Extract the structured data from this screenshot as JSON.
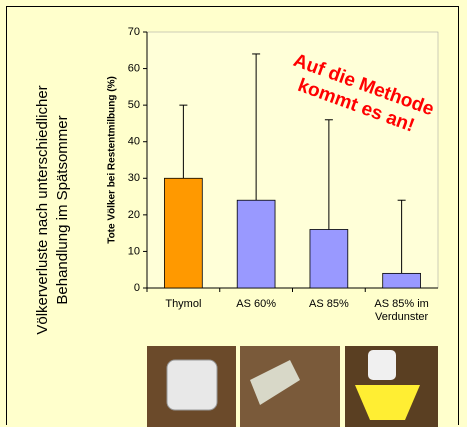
{
  "side_title": [
    "Völkerverluste nach unterschiedlicher",
    "Behandlung im Spätsommer"
  ],
  "chart_data": {
    "type": "bar",
    "y_label": "Tote Völker bei Restentmilbung (%)",
    "categories": [
      "Thymol",
      "AS 60%",
      "AS 85%",
      "AS 85% im Verdunster"
    ],
    "values": [
      30,
      24,
      16,
      4
    ],
    "errors": [
      20,
      40,
      30,
      20
    ],
    "colors": [
      "#ff9900",
      "#9999ff",
      "#9999ff",
      "#9999ff"
    ],
    "ylim": [
      0,
      70
    ],
    "yticks": [
      0,
      10,
      20,
      30,
      40,
      50,
      60,
      70
    ],
    "annotation": [
      "Auf die Methode",
      "kommt es an!"
    ]
  }
}
